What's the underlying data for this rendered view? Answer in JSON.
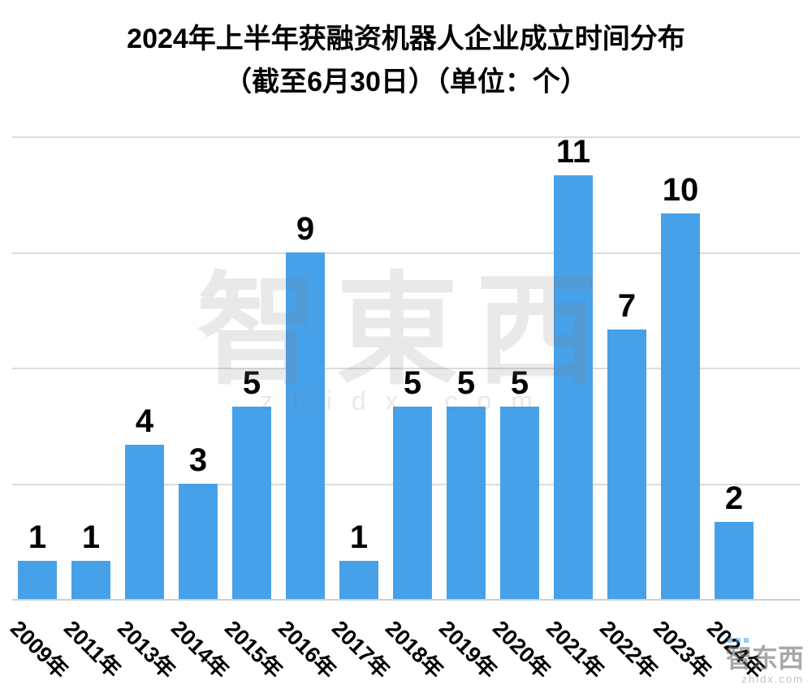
{
  "title": {
    "line1": "2024年上半年获融资机器人企业成立时间分布",
    "line2": "（截至6月30日）（单位：个）"
  },
  "watermark": {
    "brand": "智東西",
    "site": "zhidx.com",
    "corner_brand": "智东西",
    "corner_site": "zhidx.com"
  },
  "chart_data": {
    "type": "bar",
    "categories": [
      "2009年",
      "2011年",
      "2013年",
      "2014年",
      "2015年",
      "2016年",
      "2017年",
      "2018年",
      "2019年",
      "2020年",
      "2021年",
      "2022年",
      "2023年",
      "2024年"
    ],
    "values": [
      1,
      1,
      4,
      3,
      5,
      9,
      1,
      5,
      5,
      5,
      11,
      7,
      10,
      2
    ],
    "title": "2024年上半年获融资机器人企业成立时间分布（截至6月30日）（单位：个）",
    "xlabel": "",
    "ylabel": "",
    "ylim": [
      0,
      12
    ],
    "grid": true,
    "gridline_step": 3,
    "legend": false,
    "bar_color": "#47A1E9"
  }
}
